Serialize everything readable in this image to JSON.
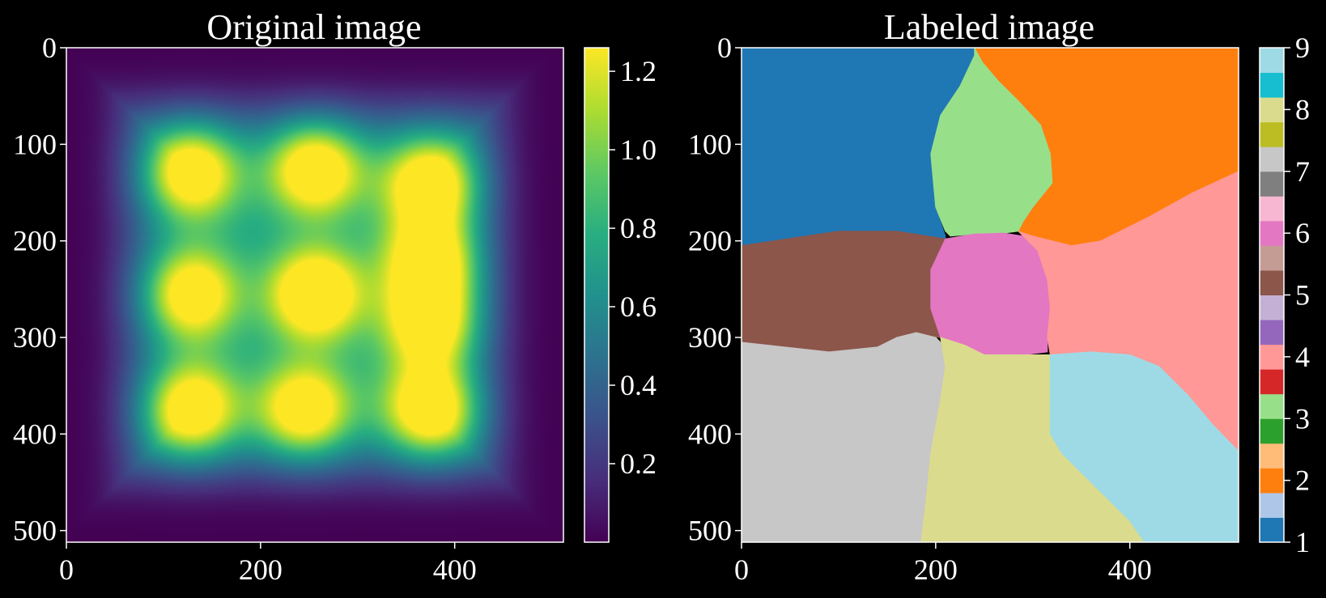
{
  "chart_data": [
    {
      "type": "heatmap",
      "title": "Original image",
      "colormap": "viridis",
      "x_ticks": [
        "0",
        "200",
        "400"
      ],
      "y_ticks": [
        "0",
        "100",
        "200",
        "300",
        "400",
        "500"
      ],
      "xlim": [
        0,
        512
      ],
      "ylim": [
        512,
        0
      ],
      "colorbar": {
        "ticks": [
          "0.2",
          "0.4",
          "0.6",
          "0.8",
          "1.0",
          "1.2"
        ],
        "tick_values": [
          0.2,
          0.4,
          0.6,
          0.8,
          1.0,
          1.2
        ],
        "range": [
          0.0,
          1.26
        ]
      },
      "blobs": [
        {
          "x": 128,
          "y": 128,
          "peak": 1.15
        },
        {
          "x": 256,
          "y": 125,
          "peak": 1.18
        },
        {
          "x": 375,
          "y": 140,
          "peak": 1.18
        },
        {
          "x": 375,
          "y": 220,
          "peak": 1.12
        },
        {
          "x": 375,
          "y": 285,
          "peak": 1.1
        },
        {
          "x": 128,
          "y": 255,
          "peak": 1.1
        },
        {
          "x": 256,
          "y": 255,
          "peak": 1.26
        },
        {
          "x": 128,
          "y": 375,
          "peak": 1.16
        },
        {
          "x": 245,
          "y": 375,
          "peak": 1.12
        },
        {
          "x": 375,
          "y": 375,
          "peak": 1.2
        }
      ]
    },
    {
      "type": "heatmap",
      "title": "Labeled image",
      "colormap": "tab20",
      "x_ticks": [
        "0",
        "200",
        "400"
      ],
      "y_ticks": [
        "0",
        "100",
        "200",
        "300",
        "400",
        "500"
      ],
      "xlim": [
        0,
        512
      ],
      "ylim": [
        512,
        0
      ],
      "colorbar": {
        "ticks": [
          "1",
          "2",
          "3",
          "4",
          "5",
          "6",
          "7",
          "8",
          "9"
        ],
        "colors": [
          "#1f77b4",
          "#aec7e8",
          "#ff7f0e",
          "#ffbb78",
          "#2ca02c",
          "#98df8a",
          "#d62728",
          "#ff9896",
          "#9467bd",
          "#c5b0d5",
          "#8c564b",
          "#c49c94",
          "#e377c2",
          "#f7b6d2",
          "#7f7f7f",
          "#c7c7c7",
          "#bcbd22",
          "#dbdb8d",
          "#17becf",
          "#9edae5"
        ]
      },
      "regions": [
        {
          "label": 1,
          "color": "#1f77b4",
          "points": [
            [
              0,
              0
            ],
            [
              240,
              0
            ],
            [
              240,
              10
            ],
            [
              225,
              40
            ],
            [
              205,
              70
            ],
            [
              195,
              110
            ],
            [
              200,
              165
            ],
            [
              210,
              195
            ],
            [
              210,
              200
            ],
            [
              160,
              190
            ],
            [
              100,
              190
            ],
            [
              0,
              205
            ]
          ]
        },
        {
          "label": 2,
          "color": "#ff7f0e",
          "points": [
            [
              240,
              0
            ],
            [
              512,
              0
            ],
            [
              512,
              128
            ],
            [
              465,
              150
            ],
            [
              420,
              175
            ],
            [
              370,
              200
            ],
            [
              340,
              205
            ],
            [
              300,
              195
            ],
            [
              285,
              190
            ],
            [
              290,
              180
            ],
            [
              300,
              165
            ],
            [
              320,
              140
            ],
            [
              318,
              110
            ],
            [
              308,
              80
            ],
            [
              285,
              55
            ],
            [
              265,
              35
            ],
            [
              248,
              15
            ],
            [
              242,
              5
            ]
          ]
        },
        {
          "label": 3,
          "color": "#98df8a",
          "points": [
            [
              240,
              0
            ],
            [
              248,
              15
            ],
            [
              265,
              35
            ],
            [
              285,
              55
            ],
            [
              308,
              80
            ],
            [
              318,
              110
            ],
            [
              320,
              140
            ],
            [
              300,
              165
            ],
            [
              290,
              180
            ],
            [
              285,
              190
            ],
            [
              270,
              192
            ],
            [
              240,
              193
            ],
            [
              215,
              195
            ],
            [
              210,
              190
            ],
            [
              200,
              165
            ],
            [
              195,
              110
            ],
            [
              205,
              70
            ],
            [
              225,
              40
            ],
            [
              240,
              8
            ]
          ]
        },
        {
          "label": 5,
          "color": "#8c564b",
          "points": [
            [
              0,
              205
            ],
            [
              100,
              190
            ],
            [
              160,
              190
            ],
            [
              210,
              198
            ],
            [
              195,
              230
            ],
            [
              195,
              270
            ],
            [
              205,
              300
            ],
            [
              200,
              300
            ],
            [
              180,
              295
            ],
            [
              160,
              300
            ],
            [
              140,
              310
            ],
            [
              90,
              315
            ],
            [
              0,
              305
            ]
          ]
        },
        {
          "label": 6,
          "color": "#e377c2",
          "points": [
            [
              210,
              198
            ],
            [
              240,
              193
            ],
            [
              270,
              192
            ],
            [
              290,
              195
            ],
            [
              305,
              210
            ],
            [
              315,
              240
            ],
            [
              318,
              270
            ],
            [
              315,
              300
            ],
            [
              315,
              315
            ],
            [
              290,
              318
            ],
            [
              250,
              318
            ],
            [
              230,
              308
            ],
            [
              205,
              300
            ],
            [
              195,
              270
            ],
            [
              195,
              230
            ]
          ]
        },
        {
          "label": 4,
          "color": "#ff9896",
          "points": [
            [
              285,
              190
            ],
            [
              300,
              195
            ],
            [
              340,
              205
            ],
            [
              370,
              200
            ],
            [
              420,
              175
            ],
            [
              465,
              150
            ],
            [
              512,
              128
            ],
            [
              512,
              418
            ],
            [
              485,
              390
            ],
            [
              460,
              360
            ],
            [
              430,
              330
            ],
            [
              400,
              318
            ],
            [
              360,
              315
            ],
            [
              318,
              318
            ],
            [
              315,
              300
            ],
            [
              318,
              270
            ],
            [
              315,
              240
            ],
            [
              305,
              210
            ],
            [
              290,
              195
            ]
          ]
        },
        {
          "label": 7,
          "color": "#c7c7c7",
          "points": [
            [
              0,
              305
            ],
            [
              90,
              315
            ],
            [
              140,
              310
            ],
            [
              160,
              300
            ],
            [
              180,
              295
            ],
            [
              200,
              300
            ],
            [
              205,
              305
            ],
            [
              210,
              330
            ],
            [
              205,
              365
            ],
            [
              195,
              420
            ],
            [
              190,
              470
            ],
            [
              185,
              512
            ],
            [
              0,
              512
            ]
          ]
        },
        {
          "label": 8,
          "color": "#dbdb8d",
          "points": [
            [
              205,
              300
            ],
            [
              230,
              308
            ],
            [
              250,
              318
            ],
            [
              290,
              318
            ],
            [
              318,
              318
            ],
            [
              318,
              360
            ],
            [
              318,
              400
            ],
            [
              330,
              420
            ],
            [
              370,
              460
            ],
            [
              400,
              490
            ],
            [
              415,
              512
            ],
            [
              185,
              512
            ],
            [
              190,
              470
            ],
            [
              195,
              420
            ],
            [
              205,
              365
            ],
            [
              210,
              330
            ]
          ]
        },
        {
          "label": 9,
          "color": "#9edae5",
          "points": [
            [
              318,
              318
            ],
            [
              360,
              315
            ],
            [
              400,
              318
            ],
            [
              430,
              330
            ],
            [
              460,
              360
            ],
            [
              485,
              390
            ],
            [
              512,
              418
            ],
            [
              512,
              512
            ],
            [
              415,
              512
            ],
            [
              400,
              490
            ],
            [
              370,
              460
            ],
            [
              330,
              420
            ],
            [
              318,
              400
            ],
            [
              318,
              360
            ]
          ]
        }
      ]
    }
  ]
}
